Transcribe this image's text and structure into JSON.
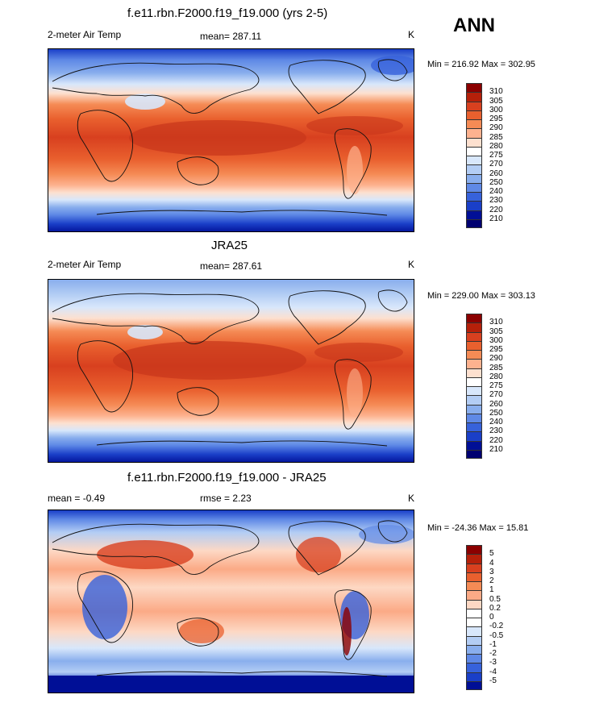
{
  "season": "ANN",
  "panels": [
    {
      "title": "f.e11.rbn.F2000.f19_f19.000 (yrs 2-5)",
      "left_label": "2-meter Air Temp",
      "center_label": "mean= 287.11",
      "right_label": "K",
      "minmax": "Min = 216.92 Max = 302.95",
      "colorbar_labels": [
        "310",
        "305",
        "300",
        "295",
        "290",
        "285",
        "280",
        "275",
        "270",
        "260",
        "250",
        "240",
        "230",
        "220",
        "210"
      ]
    },
    {
      "title": "JRA25",
      "left_label": "2-meter Air Temp",
      "center_label": "mean= 287.61",
      "right_label": "K",
      "minmax": "Min = 229.00 Max = 303.13",
      "colorbar_labels": [
        "310",
        "305",
        "300",
        "295",
        "290",
        "285",
        "280",
        "275",
        "270",
        "260",
        "250",
        "240",
        "230",
        "220",
        "210"
      ]
    },
    {
      "title": "f.e11.rbn.F2000.f19_f19.000 - JRA25",
      "left_label": "mean =  -0.49",
      "center_label": "rmse =   2.23",
      "right_label": "K",
      "minmax": "Min = -24.36 Max =  15.81",
      "colorbar_labels": [
        "5",
        "4",
        "3",
        "2",
        "1",
        "0.5",
        "0.2",
        "0",
        "-0.2",
        "-0.5",
        "-1",
        "-2",
        "-3",
        "-4",
        "-5"
      ]
    }
  ],
  "colors": {
    "temperature_scale": [
      "#8b0000",
      "#b5200a",
      "#d8401f",
      "#e9602e",
      "#f58b55",
      "#fdb28f",
      "#fde0cf",
      "#ffffff",
      "#d8e7fb",
      "#b3cdf4",
      "#89aeed",
      "#5f89e6",
      "#3762db",
      "#1a3fc8",
      "#000f96",
      "#000070"
    ],
    "difference_scale": [
      "#8b0000",
      "#b5200a",
      "#d8401f",
      "#e9602e",
      "#f58b55",
      "#fbaa86",
      "#fdd8c4",
      "#ffffff",
      "#ffffff",
      "#d8e7fb",
      "#b3cdf4",
      "#89aeed",
      "#5f89e6",
      "#3762db",
      "#1a3fc8",
      "#000f96"
    ]
  }
}
